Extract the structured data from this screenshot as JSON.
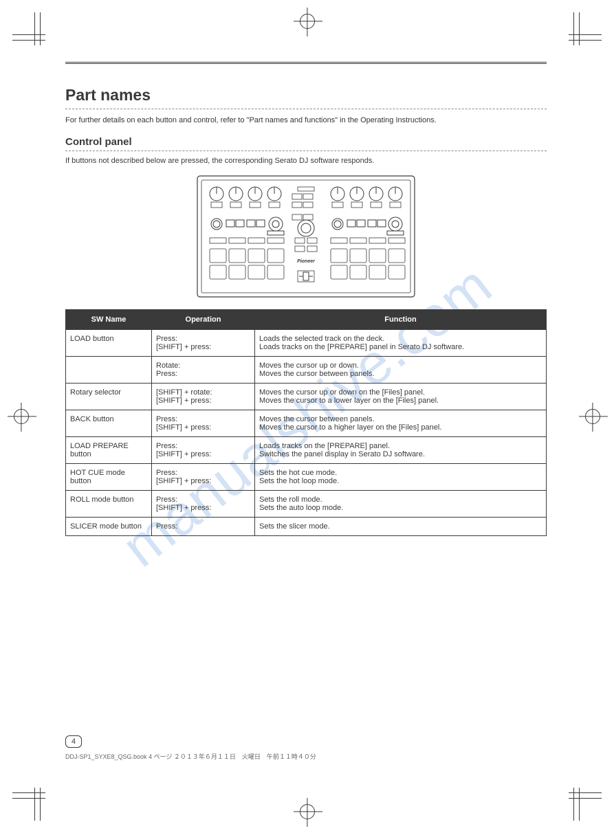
{
  "watermark": "manualshive.com",
  "page": {
    "number": "4",
    "section_title_1": "Part names",
    "intro_text": "For further details on each button and control, refer to \"Part names and functions\" in the Operating Instructions.",
    "section_title_2": "Control panel",
    "caption": "If buttons not described below are pressed, the corresponding Serato DJ software responds.",
    "footer_file": "DDJ-SP1_SYXE8_QSG.book  4 ページ  ２０１３年６月１１日　火曜日　午前１１時４０分"
  },
  "table": {
    "header_bg": "#3a3a3a",
    "header_fg": "#ffffff",
    "border_color": "#3a3a3a",
    "col1_header": "SW Name",
    "col2_header": "Operation",
    "col3_header": "Function",
    "rows": [
      {
        "c1": "LOAD button",
        "c2": "Press:\n[SHIFT] + press:",
        "c3": "Loads the selected track on the deck.\nLoads tracks on the [PREPARE] panel in Serato DJ software."
      },
      {
        "c1": "",
        "c2": "Rotate:\nPress:",
        "c3": "Moves the cursor up or down.\nMoves the cursor between panels."
      },
      {
        "c1": "Rotary selector",
        "c2": "[SHIFT] + rotate:\n[SHIFT] + press:",
        "c3": "Moves the cursor up or down on the [Files] panel.\nMoves the cursor to a lower layer on the [Files] panel."
      },
      {
        "c1": "BACK button",
        "c2": "Press:\n[SHIFT] + press:",
        "c3": "Moves the cursor between panels.\nMoves the cursor to a higher layer on the [Files] panel."
      },
      {
        "c1": "LOAD PREPARE button",
        "c2": "Press:\n[SHIFT] + press:",
        "c3": "Loads tracks on the [PREPARE] panel.\nSwitches the panel display in Serato DJ software."
      },
      {
        "c1": "HOT CUE mode button",
        "c2": "Press:\n[SHIFT] + press:",
        "c3": "Sets the hot cue mode.\nSets the hot loop mode."
      },
      {
        "c1": "ROLL mode button",
        "c2": "Press:\n[SHIFT] + press:",
        "c3": "Sets the roll mode.\nSets the auto loop mode."
      },
      {
        "c1": "SLICER mode button",
        "c2": "Press:",
        "c3": "Sets the slicer mode."
      }
    ]
  },
  "diagram": {
    "background": "#ffffff",
    "outline": "#3a3a3a"
  }
}
